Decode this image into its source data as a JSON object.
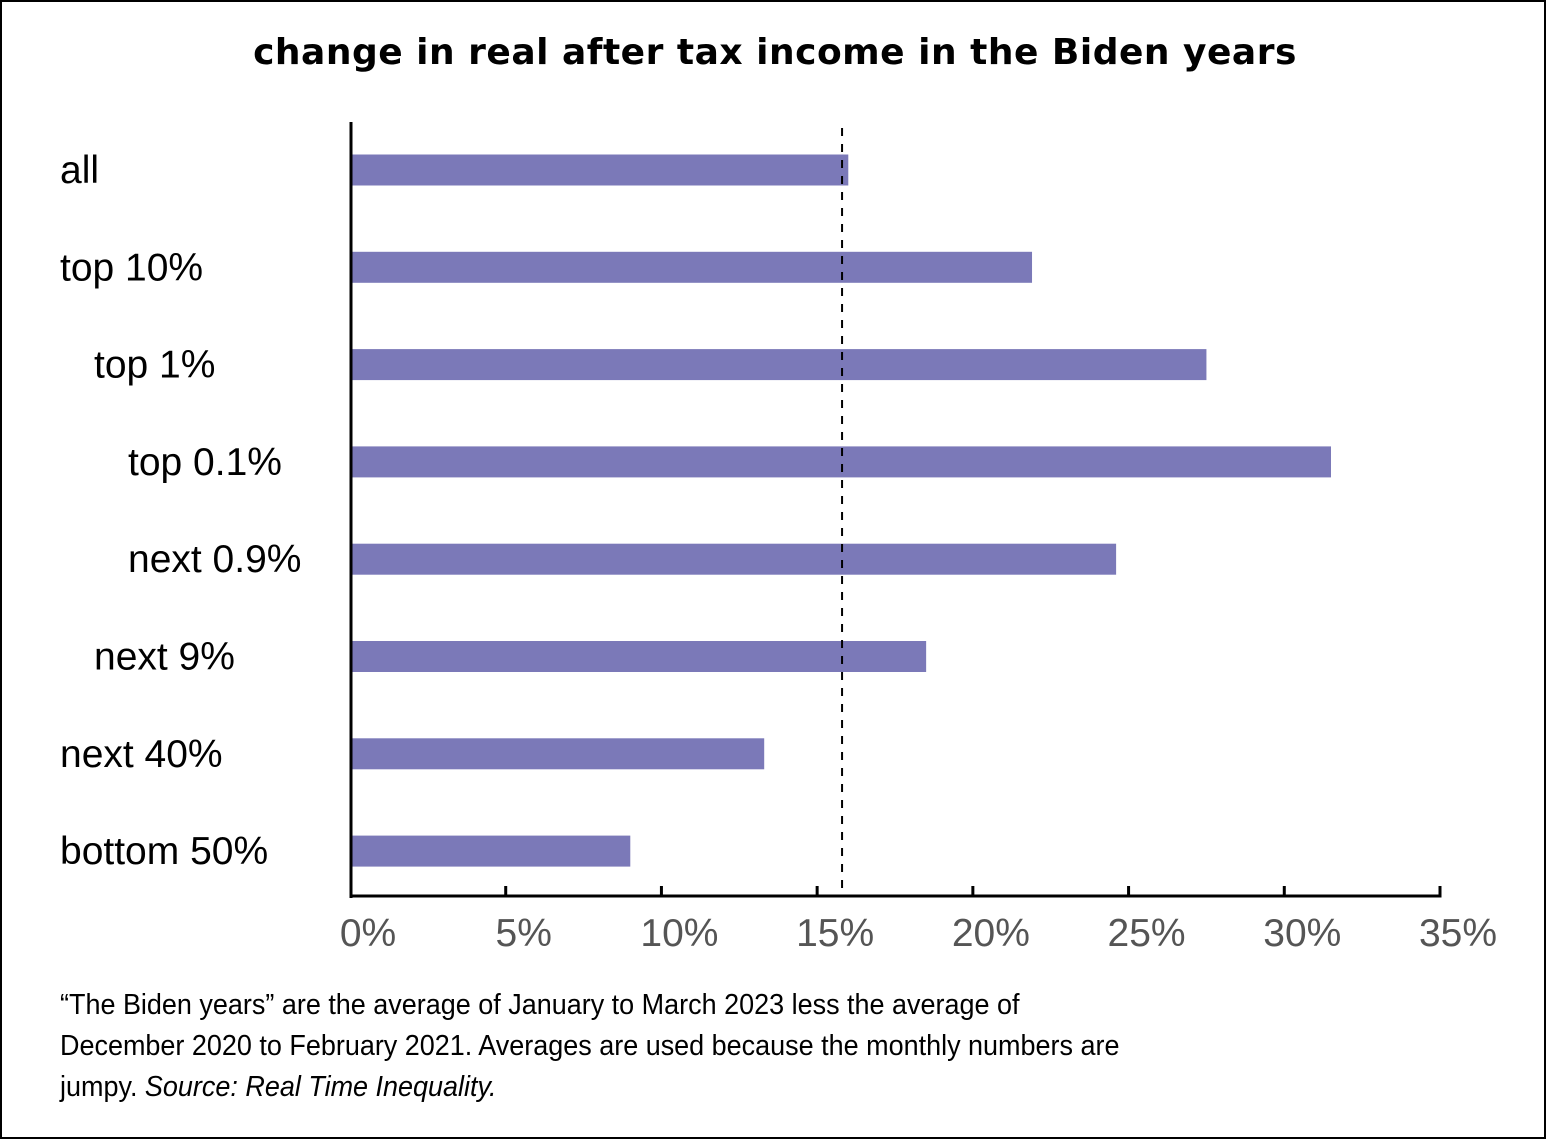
{
  "chart_data": {
    "type": "bar",
    "orientation": "horizontal",
    "title": "change in real after tax income in the Biden years",
    "categories": [
      "all",
      "top 10%",
      "top 1%",
      "top 0.1%",
      "next 0.9%",
      "next 9%",
      "next 40%",
      "bottom 50%"
    ],
    "category_indent_levels": [
      0,
      0,
      1,
      2,
      2,
      1,
      0,
      0
    ],
    "values": [
      16.0,
      21.9,
      27.5,
      31.5,
      24.6,
      18.5,
      13.3,
      9.0
    ],
    "value_unit": "%",
    "reference_line": {
      "value": 15.8,
      "style": "dashed"
    },
    "xlim": [
      0,
      35
    ],
    "xticks": [
      0,
      5,
      10,
      15,
      20,
      25,
      30,
      35
    ],
    "xtick_labels": [
      "0%",
      "5%",
      "10%",
      "15%",
      "20%",
      "25%",
      "30%",
      "35%"
    ],
    "xlabel": "",
    "ylabel": "",
    "grid": false,
    "legend": "none",
    "colors": {
      "bar": "#7b79b8",
      "axis": "#000000",
      "tick_label": "#555555",
      "reference_line": "#000000"
    }
  },
  "caption": {
    "line1": "“The Biden years” are the average of January to March 2023 less the average of",
    "line2": "December 2020 to February 2021. Averages are used because the monthly numbers are",
    "line3_plain": "jumpy. ",
    "line3_italic": "Source: Real Time Inequality."
  }
}
